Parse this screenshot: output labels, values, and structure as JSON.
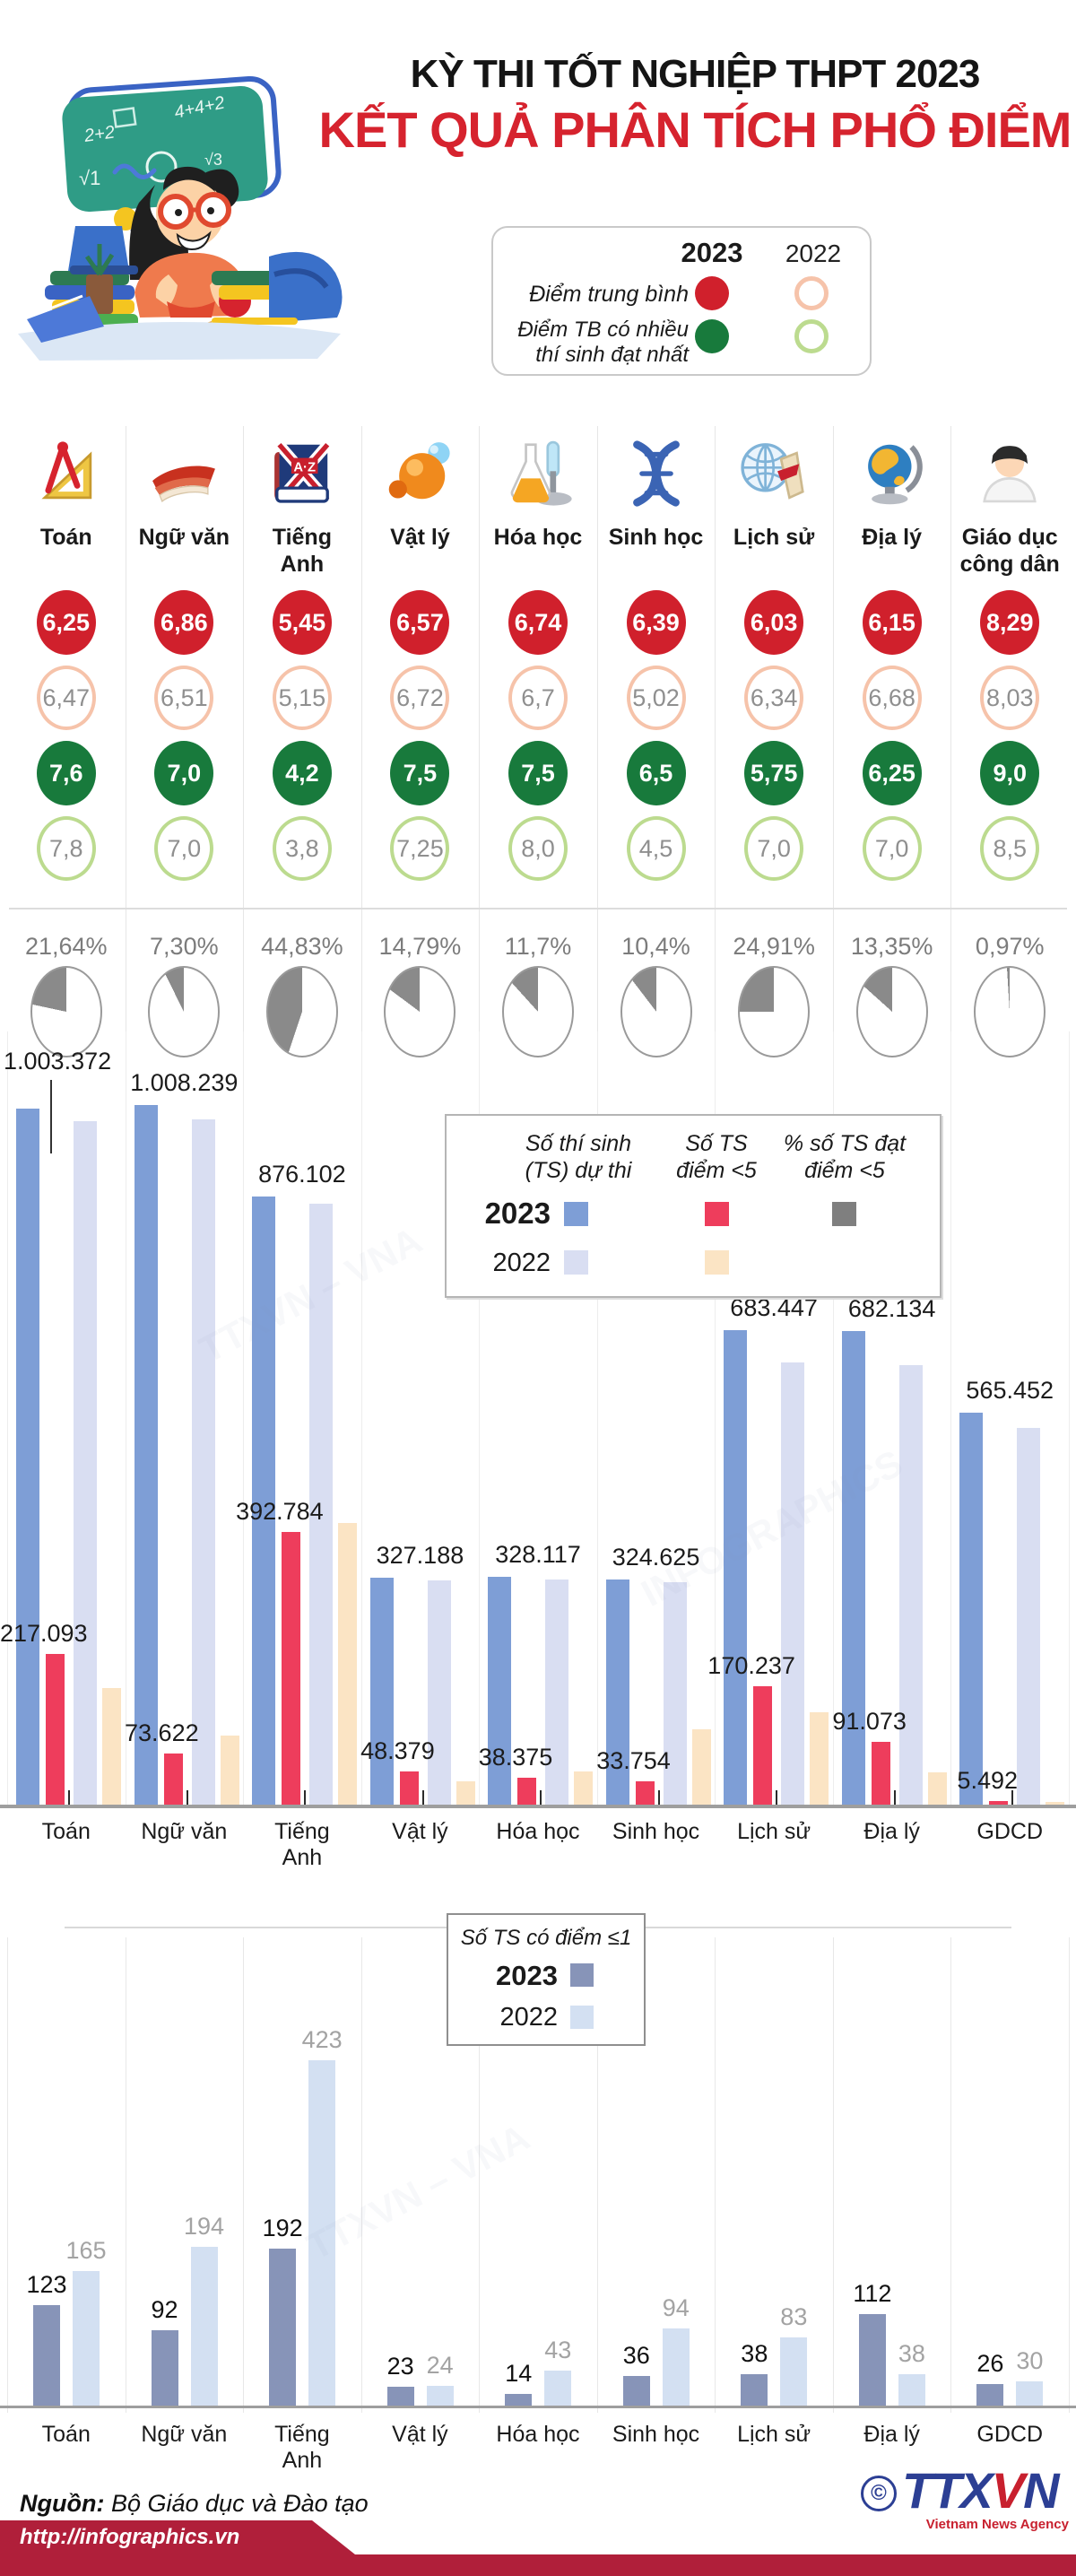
{
  "header": {
    "title_line1": "KỲ THI TỐT NGHIỆP THPT 2023",
    "title_line2": "KẾT QUẢ PHÂN TÍCH PHỔ ĐIỂM",
    "score_legend": {
      "year_2023": "2023",
      "year_2022": "2022",
      "avg_label": "Điểm trung bình",
      "mode_label": "Điểm TB có nhiều\nthí sinh đạt nhất"
    }
  },
  "colors": {
    "title_red": "#d6232e",
    "avg_2023_fill": "#d0202c",
    "avg_2022_ring": "#f6c3aa",
    "mode_2023_fill": "#187a3c",
    "mode_2022_ring": "#bcdb8f",
    "pie_gray": "#8a8a8a",
    "participants_2023": "#7e9ed6",
    "participants_2022": "#d9def2",
    "below5_2023": "#ee3d5c",
    "below5_2022": "#fbe4c4",
    "le1_2023": "#8794b8",
    "le1_2022": "#d3e0f2",
    "footer_band": "#b01f3a",
    "logo_blue": "#2c3f94"
  },
  "subjects": [
    {
      "name": "Toán",
      "icon": "math",
      "avg_2023": "6,25",
      "avg_2022": "6,47",
      "mode_2023": "7,6",
      "mode_2022": "7,8",
      "pct_below5_label": "21,64%",
      "pct_below5": 21.64
    },
    {
      "name": "Ngữ văn",
      "icon": "literature",
      "avg_2023": "6,86",
      "avg_2022": "6,51",
      "mode_2023": "7,0",
      "mode_2022": "7,0",
      "pct_below5_label": "7,30%",
      "pct_below5": 7.3
    },
    {
      "name": "Tiếng\nAnh",
      "icon": "english",
      "avg_2023": "5,45",
      "avg_2022": "5,15",
      "mode_2023": "4,2",
      "mode_2022": "3,8",
      "pct_below5_label": "44,83%",
      "pct_below5": 44.83
    },
    {
      "name": "Vật lý",
      "icon": "physics",
      "avg_2023": "6,57",
      "avg_2022": "6,72",
      "mode_2023": "7,5",
      "mode_2022": "7,25",
      "pct_below5_label": "14,79%",
      "pct_below5": 14.79
    },
    {
      "name": "Hóa học",
      "icon": "chemistry",
      "avg_2023": "6,74",
      "avg_2022": "6,7",
      "mode_2023": "7,5",
      "mode_2022": "8,0",
      "pct_below5_label": "11,7%",
      "pct_below5": 11.7
    },
    {
      "name": "Sinh học",
      "icon": "biology",
      "avg_2023": "6,39",
      "avg_2022": "5,02",
      "mode_2023": "6,5",
      "mode_2022": "4,5",
      "pct_below5_label": "10,4%",
      "pct_below5": 10.4
    },
    {
      "name": "Lịch sử",
      "icon": "history",
      "avg_2023": "6,03",
      "avg_2022": "6,34",
      "mode_2023": "5,75",
      "mode_2022": "7,0",
      "pct_below5_label": "24,91%",
      "pct_below5": 24.91
    },
    {
      "name": "Địa lý",
      "icon": "geography",
      "avg_2023": "6,15",
      "avg_2022": "6,68",
      "mode_2023": "6,25",
      "mode_2022": "7,0",
      "pct_below5_label": "13,35%",
      "pct_below5": 13.35
    },
    {
      "name": "Giáo dục\ncông dân",
      "icon": "civic",
      "avg_2023": "8,29",
      "avg_2022": "8,03",
      "mode_2023": "9,0",
      "mode_2022": "8,5",
      "pct_below5_label": "0,97%",
      "pct_below5": 0.97
    }
  ],
  "chart1": {
    "legend": {
      "col1": "Số thí sinh\n(TS) dự thi",
      "col2": "Số TS\nđiểm <5",
      "col3": "% số TS đạt\nđiểm <5",
      "row_2023": "2023",
      "row_2022": "2022"
    },
    "x_labels": [
      "Toán",
      "Ngữ văn",
      "Tiếng\nAnh",
      "Vật lý",
      "Hóa học",
      "Sinh học",
      "Lịch sử",
      "Địa lý",
      "GDCD"
    ],
    "participants_2023": [
      {
        "value": 1003372,
        "label": "1.003.372"
      },
      {
        "value": 1008239,
        "label": "1.008.239"
      },
      {
        "value": 876102,
        "label": "876.102"
      },
      {
        "value": 327188,
        "label": "327.188"
      },
      {
        "value": 328117,
        "label": "328.117"
      },
      {
        "value": 324625,
        "label": "324.625"
      },
      {
        "value": 683447,
        "label": "683.447"
      },
      {
        "value": 682134,
        "label": "682.134"
      },
      {
        "value": 565452,
        "label": "565.452"
      }
    ],
    "participants_2022_est": [
      985000,
      988000,
      866000,
      323000,
      325000,
      320000,
      637000,
      633000,
      543000
    ],
    "below5_2023": [
      {
        "value": 217093,
        "label": "217.093"
      },
      {
        "value": 73622,
        "label": "73.622"
      },
      {
        "value": 392784,
        "label": "392.784"
      },
      {
        "value": 48379,
        "label": "48.379"
      },
      {
        "value": 38375,
        "label": "38.375"
      },
      {
        "value": 33754,
        "label": "33.754"
      },
      {
        "value": 170237,
        "label": "170.237"
      },
      {
        "value": 91073,
        "label": "91.073"
      },
      {
        "value": 5492,
        "label": "5.492"
      }
    ],
    "below5_2022_est": [
      168000,
      100000,
      406000,
      34000,
      48000,
      108000,
      133000,
      46000,
      3500
    ]
  },
  "chart2": {
    "legend": {
      "title": "Số TS có điểm ≤1",
      "row_2023": "2023",
      "row_2022": "2022"
    },
    "x_labels": [
      "Toán",
      "Ngữ văn",
      "Tiếng\nAnh",
      "Vật lý",
      "Hóa học",
      "Sinh học",
      "Lịch sử",
      "Địa lý",
      "GDCD"
    ],
    "values_2023": [
      123,
      92,
      192,
      23,
      14,
      36,
      38,
      112,
      26
    ],
    "values_2022": [
      165,
      194,
      423,
      24,
      43,
      94,
      83,
      38,
      30
    ]
  },
  "footer": {
    "source_label": "Nguồn:",
    "source_text": " Bộ Giáo dục và Đào tạo",
    "url": "http://infographics.vn",
    "copyright": "©",
    "agency_t1": "TTX",
    "agency_v": "V",
    "agency_n": "N",
    "agency_caption": "Vietnam News Agency"
  },
  "chart_data": [
    {
      "type": "table",
      "title": "Điểm trung bình và điểm TB có nhiều thí sinh đạt nhất (2023 vs 2022)",
      "columns": [
        "Môn",
        "Điểm trung bình 2023",
        "Điểm trung bình 2022",
        "Điểm TB nhiều TS đạt nhất 2023",
        "Điểm TB nhiều TS đạt nhất 2022"
      ],
      "rows": [
        [
          "Toán",
          "6,25",
          "6,47",
          "7,6",
          "7,8"
        ],
        [
          "Ngữ văn",
          "6,86",
          "6,51",
          "7,0",
          "7,0"
        ],
        [
          "Tiếng Anh",
          "5,45",
          "5,15",
          "4,2",
          "3,8"
        ],
        [
          "Vật lý",
          "6,57",
          "6,72",
          "7,5",
          "7,25"
        ],
        [
          "Hóa học",
          "6,74",
          "6,7",
          "7,5",
          "8,0"
        ],
        [
          "Sinh học",
          "6,39",
          "5,02",
          "6,5",
          "4,5"
        ],
        [
          "Lịch sử",
          "6,03",
          "6,34",
          "5,75",
          "7,0"
        ],
        [
          "Địa lý",
          "6,15",
          "6,68",
          "6,25",
          "7,0"
        ],
        [
          "Giáo dục công dân",
          "8,29",
          "8,03",
          "9,0",
          "8,5"
        ]
      ]
    },
    {
      "type": "pie",
      "title": "% số TS đạt điểm <5 (2023)",
      "categories": [
        "Toán",
        "Ngữ văn",
        "Tiếng Anh",
        "Vật lý",
        "Hóa học",
        "Sinh học",
        "Lịch sử",
        "Địa lý",
        "GDCD"
      ],
      "values": [
        21.64,
        7.3,
        44.83,
        14.79,
        11.7,
        10.4,
        24.91,
        13.35,
        0.97
      ]
    },
    {
      "type": "bar",
      "title": "Số thí sinh (TS) dự thi và số TS điểm <5",
      "categories": [
        "Toán",
        "Ngữ văn",
        "Tiếng Anh",
        "Vật lý",
        "Hóa học",
        "Sinh học",
        "Lịch sử",
        "Địa lý",
        "GDCD"
      ],
      "series": [
        {
          "name": "Số TS dự thi 2023",
          "values": [
            1003372,
            1008239,
            876102,
            327188,
            328117,
            324625,
            683447,
            682134,
            565452
          ]
        },
        {
          "name": "Số TS dự thi 2022 (ước lượng theo chiều cao cột, không ghi số)",
          "values": [
            985000,
            988000,
            866000,
            323000,
            325000,
            320000,
            637000,
            633000,
            543000
          ]
        },
        {
          "name": "Số TS điểm <5 năm 2023",
          "values": [
            217093,
            73622,
            392784,
            48379,
            38375,
            33754,
            170237,
            91073,
            5492
          ]
        },
        {
          "name": "Số TS điểm <5 năm 2022 (ước lượng theo chiều cao cột, không ghi số)",
          "values": [
            168000,
            100000,
            406000,
            34000,
            48000,
            108000,
            133000,
            46000,
            3500
          ]
        }
      ],
      "legend_position": "top-right",
      "grid": "vertical-separators"
    },
    {
      "type": "bar",
      "title": "Số TS có điểm ≤1",
      "categories": [
        "Toán",
        "Ngữ văn",
        "Tiếng Anh",
        "Vật lý",
        "Hóa học",
        "Sinh học",
        "Lịch sử",
        "Địa lý",
        "GDCD"
      ],
      "series": [
        {
          "name": "2023",
          "values": [
            123,
            92,
            192,
            23,
            14,
            36,
            38,
            112,
            26
          ]
        },
        {
          "name": "2022",
          "values": [
            165,
            194,
            423,
            24,
            43,
            94,
            83,
            38,
            30
          ]
        }
      ],
      "legend_position": "top-center",
      "grid": "vertical-separators"
    }
  ]
}
